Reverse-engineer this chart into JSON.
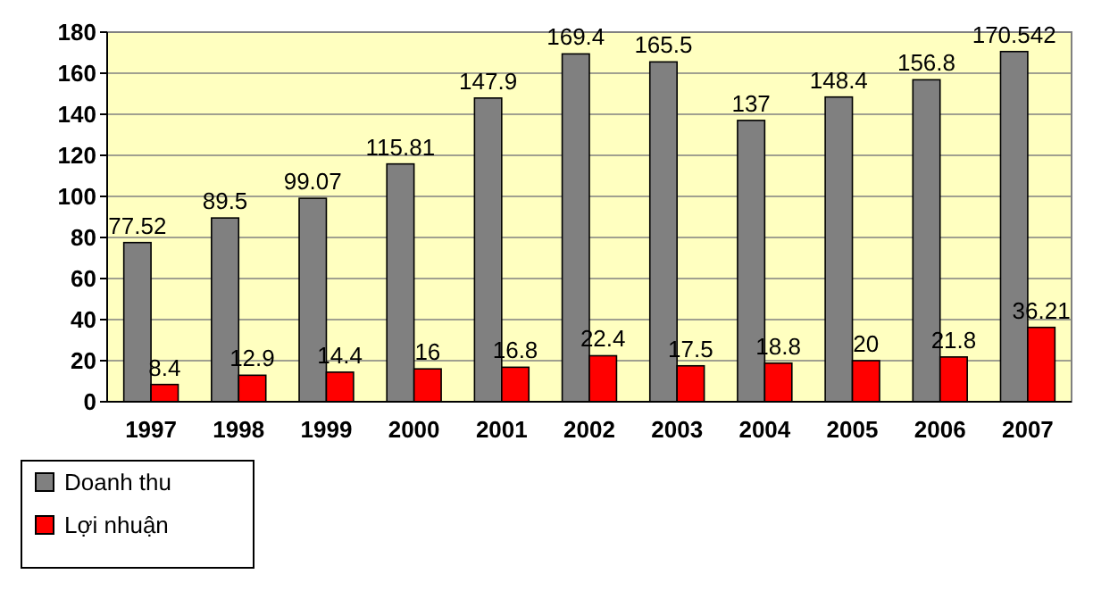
{
  "chart_data": {
    "type": "bar",
    "categories": [
      "1997",
      "1998",
      "1999",
      "2000",
      "2001",
      "2002",
      "2003",
      "2004",
      "2005",
      "2006",
      "2007"
    ],
    "series": [
      {
        "name": "Doanh thu",
        "color": "#808080",
        "values": [
          77.52,
          89.5,
          99.07,
          115.81,
          147.9,
          169.4,
          165.5,
          137,
          148.4,
          156.8,
          170.542
        ]
      },
      {
        "name": "Lợi nhuận",
        "color": "#ff0000",
        "values": [
          8.4,
          12.9,
          14.4,
          16,
          16.8,
          22.4,
          17.5,
          18.8,
          20,
          21.8,
          36.21
        ]
      }
    ],
    "ylim": [
      0,
      180
    ],
    "yticks": [
      0,
      20,
      40,
      60,
      80,
      100,
      120,
      140,
      160,
      180
    ],
    "grid": "y",
    "data_labels": true,
    "legend": "bottom left"
  }
}
